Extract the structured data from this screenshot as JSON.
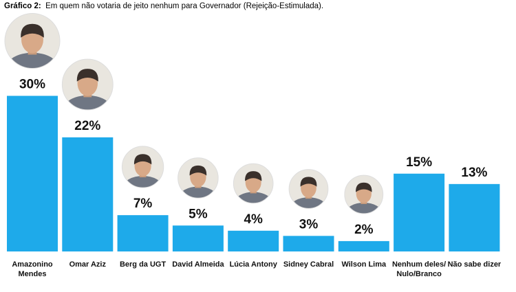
{
  "title": {
    "label": "Gráfico 2:",
    "text": "Em quem não votaria de jeito nenhum para Governador (Rejeição-Estimulada)."
  },
  "colors": {
    "bar": "#1EAAEA",
    "background": "#FFFFFF"
  },
  "chart_data": {
    "type": "bar",
    "title": "Em quem não votaria de jeito nenhum para Governador (Rejeição-Estimulada).",
    "categories": [
      [
        "Amazonino",
        "Mendes"
      ],
      [
        "Omar Aziz"
      ],
      [
        "Berg da UGT"
      ],
      [
        "David Almeida"
      ],
      [
        "Lúcia Antony"
      ],
      [
        "Sidney Cabral"
      ],
      [
        "Wilson Lima"
      ],
      [
        "Nenhum deles/",
        "Nulo/Branco"
      ],
      [
        "Não sabe dizer"
      ]
    ],
    "values": [
      30,
      22,
      7,
      5,
      4,
      3,
      2,
      15,
      13
    ],
    "value_labels": [
      "30%",
      "22%",
      "7%",
      "5%",
      "4%",
      "3%",
      "2%",
      "15%",
      "13%"
    ],
    "candidate_photos": [
      true,
      true,
      true,
      true,
      true,
      true,
      true,
      false,
      false
    ],
    "xlabel": "",
    "ylabel": "",
    "grid": false,
    "legend": "none"
  }
}
